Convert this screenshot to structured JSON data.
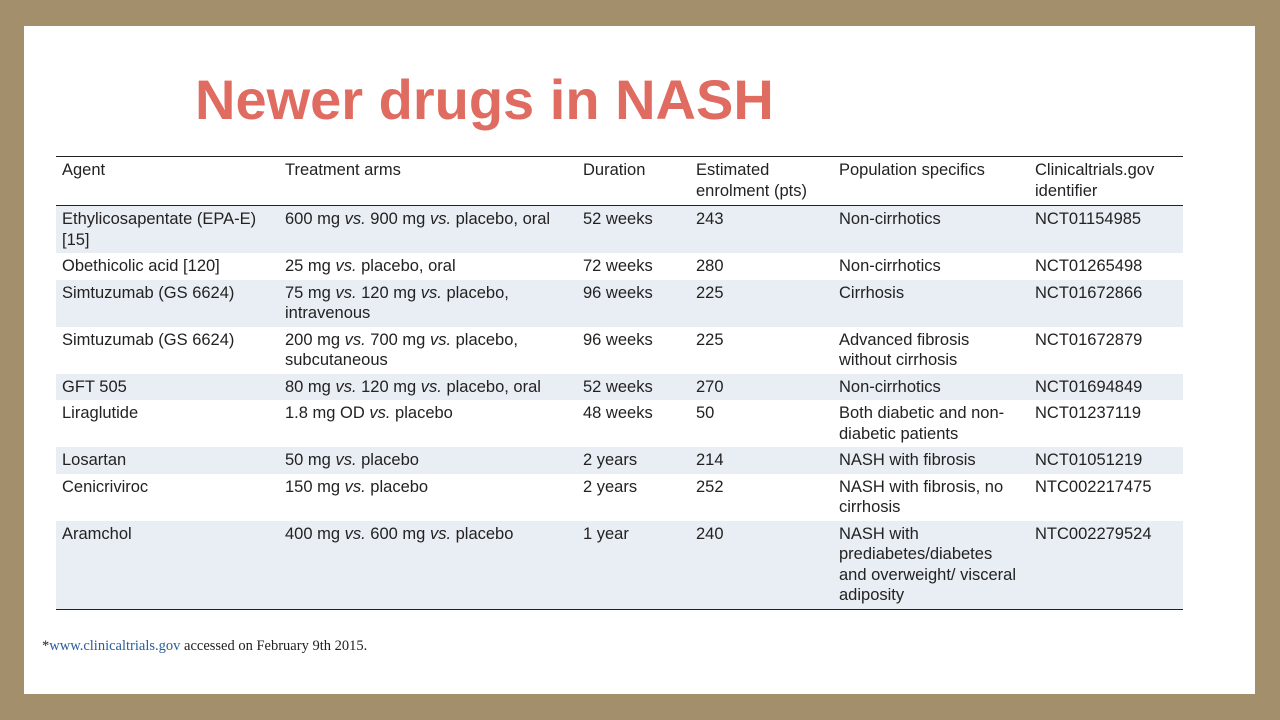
{
  "title": "Newer drugs in NASH",
  "table": {
    "headers": {
      "agent": "Agent",
      "arms": "Treatment arms",
      "duration": "Duration",
      "enrolment": "Estimated enrolment (pts)",
      "population": "Population specifics",
      "identifier": "Clinicaltrials.gov identifier"
    },
    "rows": [
      {
        "agent": "Ethylicosapentate (EPA-E) [15]",
        "arms": "600 mg vs. 900 mg vs. placebo, oral",
        "duration": "52 weeks",
        "enrolment": "243",
        "population": "Non-cirrhotics",
        "identifier": "NCT01154985"
      },
      {
        "agent": "Obethicolic acid [120]",
        "arms": "25 mg vs. placebo, oral",
        "duration": "72 weeks",
        "enrolment": "280",
        "population": "Non-cirrhotics",
        "identifier": "NCT01265498"
      },
      {
        "agent": "Simtuzumab (GS 6624)",
        "arms": "75 mg vs. 120 mg vs. placebo, intravenous",
        "duration": "96 weeks",
        "enrolment": "225",
        "population": "Cirrhosis",
        "identifier": "NCT01672866"
      },
      {
        "agent": "Simtuzumab (GS 6624)",
        "arms": "200 mg vs. 700 mg vs. placebo, subcutaneous",
        "duration": "96 weeks",
        "enrolment": "225",
        "population": "Advanced fibrosis without cirrhosis",
        "identifier": "NCT01672879"
      },
      {
        "agent": "GFT 505",
        "arms": "80 mg vs. 120 mg vs. placebo, oral",
        "duration": "52 weeks",
        "enrolment": "270",
        "population": "Non-cirrhotics",
        "identifier": "NCT01694849"
      },
      {
        "agent": "Liraglutide",
        "arms": "1.8 mg OD vs. placebo",
        "duration": "48 weeks",
        "enrolment": "50",
        "population": "Both diabetic and non-diabetic patients",
        "identifier": "NCT01237119"
      },
      {
        "agent": "Losartan",
        "arms": "50 mg vs. placebo",
        "duration": "2 years",
        "enrolment": "214",
        "population": "NASH with fibrosis",
        "identifier": "NCT01051219"
      },
      {
        "agent": "Cenicriviroc",
        "arms": "150 mg vs. placebo",
        "duration": "2 years",
        "enrolment": "252",
        "population": "NASH with fibrosis, no cirrhosis",
        "identifier": "NTC002217475"
      },
      {
        "agent": "Aramchol",
        "arms": "400 mg vs. 600 mg vs. placebo",
        "duration": "1 year",
        "enrolment": "240",
        "population": "NASH with prediabetes/diabetes and overweight/ visceral adiposity",
        "identifier": "NTC002279524"
      }
    ]
  },
  "footnote": {
    "marker": "*",
    "url": "www.clinicaltrials.gov",
    "text": " accessed on February 9th 2015."
  },
  "colors": {
    "frame": "#a38f6c",
    "title": "#e06b60",
    "row_stripe": "#e9eef4",
    "link": "#2a5d9c"
  }
}
